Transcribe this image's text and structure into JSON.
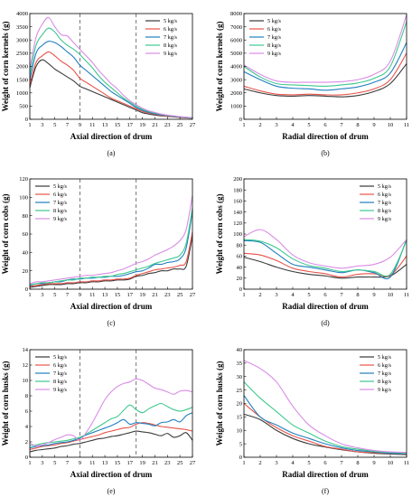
{
  "chart_data": [
    {
      "type": "line",
      "panel_label": "(a)",
      "xlabel": "Axial direction of drum",
      "ylabel": "Weight of corn kernels (g)",
      "x": [
        1,
        2,
        3,
        4,
        5,
        6,
        7,
        8,
        9,
        10,
        11,
        12,
        13,
        14,
        15,
        16,
        17,
        18,
        19,
        20,
        21,
        22,
        23,
        24,
        25,
        26,
        27
      ],
      "xticks": [
        1,
        3,
        5,
        7,
        9,
        11,
        13,
        15,
        17,
        19,
        21,
        23,
        25,
        27
      ],
      "ylim": [
        0,
        4000
      ],
      "yticks": [
        0,
        500,
        1000,
        1500,
        2000,
        2500,
        3000,
        3500,
        4000
      ],
      "vlines": [
        9,
        18
      ],
      "legend_position": "top-right",
      "series": [
        {
          "name": "5 kg/s",
          "color": "#3a3a3a",
          "values": [
            1200,
            2000,
            2250,
            2100,
            1900,
            1750,
            1600,
            1450,
            1250,
            1150,
            1050,
            950,
            850,
            750,
            650,
            550,
            450,
            350,
            250,
            200,
            160,
            130,
            110,
            90,
            70,
            55,
            40
          ]
        },
        {
          "name": "6 kg/s",
          "color": "#e8534a",
          "values": [
            1300,
            2150,
            2400,
            2550,
            2400,
            2200,
            2050,
            1850,
            1550,
            1400,
            1250,
            1100,
            950,
            800,
            700,
            600,
            500,
            400,
            300,
            240,
            190,
            150,
            120,
            100,
            80,
            60,
            45
          ]
        },
        {
          "name": "7 kg/s",
          "color": "#1f80c0",
          "values": [
            1500,
            2500,
            2800,
            2950,
            2900,
            2750,
            2550,
            2350,
            2050,
            1850,
            1650,
            1450,
            1250,
            1050,
            900,
            750,
            600,
            450,
            340,
            270,
            210,
            170,
            140,
            110,
            90,
            70,
            50
          ]
        },
        {
          "name": "8 kg/s",
          "color": "#3ec98e",
          "values": [
            1700,
            2800,
            3200,
            3450,
            3300,
            3000,
            2800,
            2650,
            2450,
            2200,
            1950,
            1650,
            1400,
            1200,
            1000,
            800,
            650,
            500,
            380,
            300,
            240,
            190,
            150,
            120,
            95,
            75,
            55
          ]
        },
        {
          "name": "9 kg/s",
          "color": "#d98ce6",
          "values": [
            1900,
            3100,
            3600,
            3850,
            3500,
            3200,
            3150,
            2900,
            2650,
            2400,
            2150,
            1850,
            1600,
            1350,
            1150,
            900,
            700,
            550,
            420,
            320,
            260,
            200,
            160,
            130,
            100,
            80,
            60
          ]
        }
      ]
    },
    {
      "type": "line",
      "panel_label": "(b)",
      "xlabel": "Radial direction of drum",
      "ylabel": "Weight of corn kernels (g)",
      "x": [
        1,
        2,
        3,
        4,
        5,
        6,
        7,
        8,
        9,
        10,
        11
      ],
      "xticks": [
        1,
        2,
        3,
        4,
        5,
        6,
        7,
        8,
        9,
        10,
        11
      ],
      "ylim": [
        0,
        8000
      ],
      "yticks": [
        0,
        1000,
        2000,
        3000,
        4000,
        5000,
        6000,
        7000,
        8000
      ],
      "vlines": [],
      "legend_position": "top-left",
      "series": [
        {
          "name": "5 kg/s",
          "color": "#3a3a3a",
          "values": [
            2300,
            2000,
            1800,
            1750,
            1800,
            1750,
            1700,
            1800,
            2100,
            2700,
            4200
          ]
        },
        {
          "name": "6 kg/s",
          "color": "#e8534a",
          "values": [
            2500,
            2150,
            1900,
            1850,
            1900,
            1850,
            1850,
            2000,
            2300,
            3000,
            5000
          ]
        },
        {
          "name": "7 kg/s",
          "color": "#1f80c0",
          "values": [
            3600,
            3000,
            2500,
            2350,
            2300,
            2200,
            2300,
            2450,
            2800,
            3500,
            5800
          ]
        },
        {
          "name": "8 kg/s",
          "color": "#3ec98e",
          "values": [
            4000,
            3200,
            2700,
            2600,
            2550,
            2500,
            2600,
            2750,
            3100,
            4000,
            7400
          ]
        },
        {
          "name": "9 kg/s",
          "color": "#d98ce6",
          "values": [
            4100,
            3400,
            2900,
            2800,
            2800,
            2800,
            2850,
            3000,
            3400,
            4400,
            7900
          ]
        }
      ]
    },
    {
      "type": "line",
      "panel_label": "(c)",
      "xlabel": "Axial direction of drum",
      "ylabel": "Weight of corn cobs (g)",
      "x": [
        1,
        2,
        3,
        4,
        5,
        6,
        7,
        8,
        9,
        10,
        11,
        12,
        13,
        14,
        15,
        16,
        17,
        18,
        19,
        20,
        21,
        22,
        23,
        24,
        25,
        26,
        27
      ],
      "xticks": [
        1,
        3,
        5,
        7,
        9,
        11,
        13,
        15,
        17,
        19,
        21,
        23,
        25,
        27
      ],
      "ylim": [
        0,
        120
      ],
      "yticks": [
        0,
        20,
        40,
        60,
        80,
        100,
        120
      ],
      "vlines": [
        9,
        18
      ],
      "legend_position": "top-left",
      "series": [
        {
          "name": "5 kg/s",
          "color": "#3a3a3a",
          "values": [
            2,
            3,
            4,
            5,
            5,
            5,
            6,
            6,
            7,
            7,
            8,
            8,
            9,
            9,
            10,
            10,
            11,
            14,
            15,
            17,
            18,
            20,
            20,
            22,
            22,
            25,
            58
          ]
        },
        {
          "name": "6 kg/s",
          "color": "#e8534a",
          "values": [
            3,
            4,
            5,
            6,
            6,
            6,
            7,
            7,
            8,
            8,
            9,
            9,
            10,
            10,
            11,
            11,
            12,
            15,
            17,
            19,
            21,
            22,
            23,
            24,
            26,
            30,
            62
          ]
        },
        {
          "name": "7 kg/s",
          "color": "#1f80c0",
          "values": [
            4,
            6,
            6,
            7,
            8,
            8,
            10,
            11,
            11,
            12,
            12,
            13,
            13,
            14,
            14,
            15,
            17,
            19,
            20,
            23,
            27,
            27,
            29,
            30,
            33,
            45,
            85
          ]
        },
        {
          "name": "8 kg/s",
          "color": "#3ec98e",
          "values": [
            5,
            6,
            7,
            7,
            8,
            9,
            10,
            10,
            12,
            12,
            13,
            13,
            14,
            14,
            16,
            17,
            19,
            21,
            23,
            25,
            28,
            30,
            32,
            34,
            37,
            50,
            88
          ]
        },
        {
          "name": "9 kg/s",
          "color": "#d98ce6",
          "values": [
            6,
            8,
            8,
            9,
            10,
            11,
            12,
            13,
            14,
            15,
            15,
            16,
            17,
            18,
            20,
            22,
            25,
            28,
            30,
            33,
            37,
            40,
            43,
            47,
            53,
            65,
            102
          ]
        }
      ]
    },
    {
      "type": "line",
      "panel_label": "(d)",
      "xlabel": "Radial direction of drum",
      "ylabel": "Weight of corn cobs (g)",
      "x": [
        1,
        2,
        3,
        4,
        5,
        6,
        7,
        8,
        9,
        10,
        11
      ],
      "xticks": [
        1,
        2,
        3,
        4,
        5,
        6,
        7,
        8,
        9,
        10,
        11
      ],
      "ylim": [
        0,
        200
      ],
      "yticks": [
        0,
        20,
        40,
        60,
        80,
        100,
        120,
        140,
        160,
        180,
        200
      ],
      "vlines": [],
      "legend_position": "top-right",
      "series": [
        {
          "name": "5 kg/s",
          "color": "#3a3a3a",
          "values": [
            58,
            50,
            40,
            32,
            27,
            24,
            20,
            22,
            22,
            24,
            45
          ]
        },
        {
          "name": "6 kg/s",
          "color": "#e8534a",
          "values": [
            65,
            62,
            52,
            38,
            32,
            28,
            22,
            27,
            28,
            25,
            60
          ]
        },
        {
          "name": "7 kg/s",
          "color": "#1f80c0",
          "values": [
            88,
            85,
            65,
            45,
            40,
            35,
            30,
            35,
            30,
            22,
            90
          ]
        },
        {
          "name": "8 kg/s",
          "color": "#3ec98e",
          "values": [
            90,
            87,
            75,
            55,
            43,
            38,
            32,
            35,
            32,
            27,
            88
          ]
        },
        {
          "name": "9 kg/s",
          "color": "#d98ce6",
          "values": [
            95,
            108,
            90,
            62,
            48,
            42,
            38,
            42,
            45,
            58,
            90
          ]
        }
      ]
    },
    {
      "type": "line",
      "panel_label": "(e)",
      "xlabel": "Axial direction of drum",
      "ylabel": "Weight of corn husks (g)",
      "x": [
        1,
        2,
        3,
        4,
        5,
        6,
        7,
        8,
        9,
        10,
        11,
        12,
        13,
        14,
        15,
        16,
        17,
        18,
        19,
        20,
        21,
        22,
        23,
        24,
        25,
        26,
        27
      ],
      "xticks": [
        1,
        3,
        5,
        7,
        9,
        11,
        13,
        15,
        17,
        19,
        21,
        23,
        25,
        27
      ],
      "ylim": [
        0,
        14
      ],
      "yticks": [
        0,
        2,
        4,
        6,
        8,
        10,
        12,
        14
      ],
      "vlines": [
        9,
        18
      ],
      "legend_position": "top-left",
      "series": [
        {
          "name": "5 kg/s",
          "color": "#3a3a3a",
          "values": [
            0.7,
            0.9,
            1.0,
            1.1,
            1.2,
            1.4,
            1.5,
            1.7,
            1.8,
            2.0,
            2.2,
            2.4,
            2.5,
            2.7,
            2.8,
            3.0,
            3.2,
            3.4,
            3.3,
            3.2,
            3.0,
            2.8,
            3.1,
            2.6,
            2.8,
            3.2,
            2.2
          ]
        },
        {
          "name": "6 kg/s",
          "color": "#e8534a",
          "values": [
            1.0,
            1.2,
            1.4,
            1.5,
            1.6,
            1.8,
            1.9,
            2.1,
            2.3,
            2.5,
            2.7,
            2.9,
            3.2,
            3.4,
            3.6,
            3.8,
            3.9,
            4.3,
            4.5,
            4.4,
            4.2,
            4.0,
            3.9,
            3.8,
            3.7,
            3.6,
            3.4
          ]
        },
        {
          "name": "7 kg/s",
          "color": "#1f80c0",
          "values": [
            1.2,
            1.4,
            1.5,
            1.6,
            1.8,
            1.9,
            2.0,
            2.2,
            2.5,
            2.9,
            3.2,
            3.5,
            3.8,
            4.1,
            4.5,
            4.9,
            4.3,
            4.5,
            4.4,
            4.3,
            4.1,
            4.5,
            4.6,
            4.9,
            4.6,
            5.4,
            5.8
          ]
        },
        {
          "name": "8 kg/s",
          "color": "#3ec98e",
          "values": [
            1.5,
            1.6,
            1.8,
            1.9,
            2.0,
            2.1,
            2.2,
            2.4,
            2.6,
            3.0,
            3.5,
            4.0,
            4.5,
            5.0,
            5.3,
            6.1,
            6.8,
            6.2,
            5.8,
            6.3,
            6.7,
            7.0,
            6.6,
            6.2,
            6.0,
            6.2,
            6.5
          ]
        },
        {
          "name": "9 kg/s",
          "color": "#d98ce6",
          "values": [
            1.8,
            1.5,
            1.6,
            1.9,
            2.3,
            2.6,
            2.9,
            2.8,
            2.2,
            3.2,
            4.5,
            6.0,
            7.5,
            8.5,
            9.2,
            9.6,
            9.8,
            10.2,
            10.0,
            9.5,
            9.0,
            8.8,
            8.5,
            8.2,
            8.6,
            8.7,
            8.5
          ]
        }
      ]
    },
    {
      "type": "line",
      "panel_label": "(f)",
      "xlabel": "Radial direction of drum",
      "ylabel": "Weight of corn husks (g)",
      "x": [
        1,
        2,
        3,
        4,
        5,
        6,
        7,
        8,
        9,
        10,
        11
      ],
      "xticks": [
        1,
        2,
        3,
        4,
        5,
        6,
        7,
        8,
        9,
        10,
        11
      ],
      "ylim": [
        0,
        40
      ],
      "yticks": [
        0,
        5,
        10,
        15,
        20,
        25,
        30,
        35,
        40
      ],
      "vlines": [],
      "legend_position": "top-right",
      "series": [
        {
          "name": "5 kg/s",
          "color": "#3a3a3a",
          "values": [
            16,
            14,
            10,
            7,
            5,
            3.8,
            2.8,
            2.0,
            1.5,
            1.2,
            1.0
          ]
        },
        {
          "name": "6 kg/s",
          "color": "#e8534a",
          "values": [
            20,
            15,
            11,
            8,
            6,
            4,
            3,
            2,
            1.7,
            1.4,
            1.2
          ]
        },
        {
          "name": "7 kg/s",
          "color": "#1f80c0",
          "values": [
            23,
            15,
            12,
            9,
            7,
            5,
            3.5,
            2.5,
            2,
            1.5,
            1.3
          ]
        },
        {
          "name": "8 kg/s",
          "color": "#3ec98e",
          "values": [
            28,
            22,
            17,
            12,
            9,
            6,
            4,
            3,
            2.2,
            1.8,
            1.5
          ]
        },
        {
          "name": "9 kg/s",
          "color": "#d98ce6",
          "values": [
            36,
            33,
            28,
            19,
            12,
            8,
            5,
            3.5,
            2.5,
            2,
            1.8
          ]
        }
      ]
    }
  ]
}
